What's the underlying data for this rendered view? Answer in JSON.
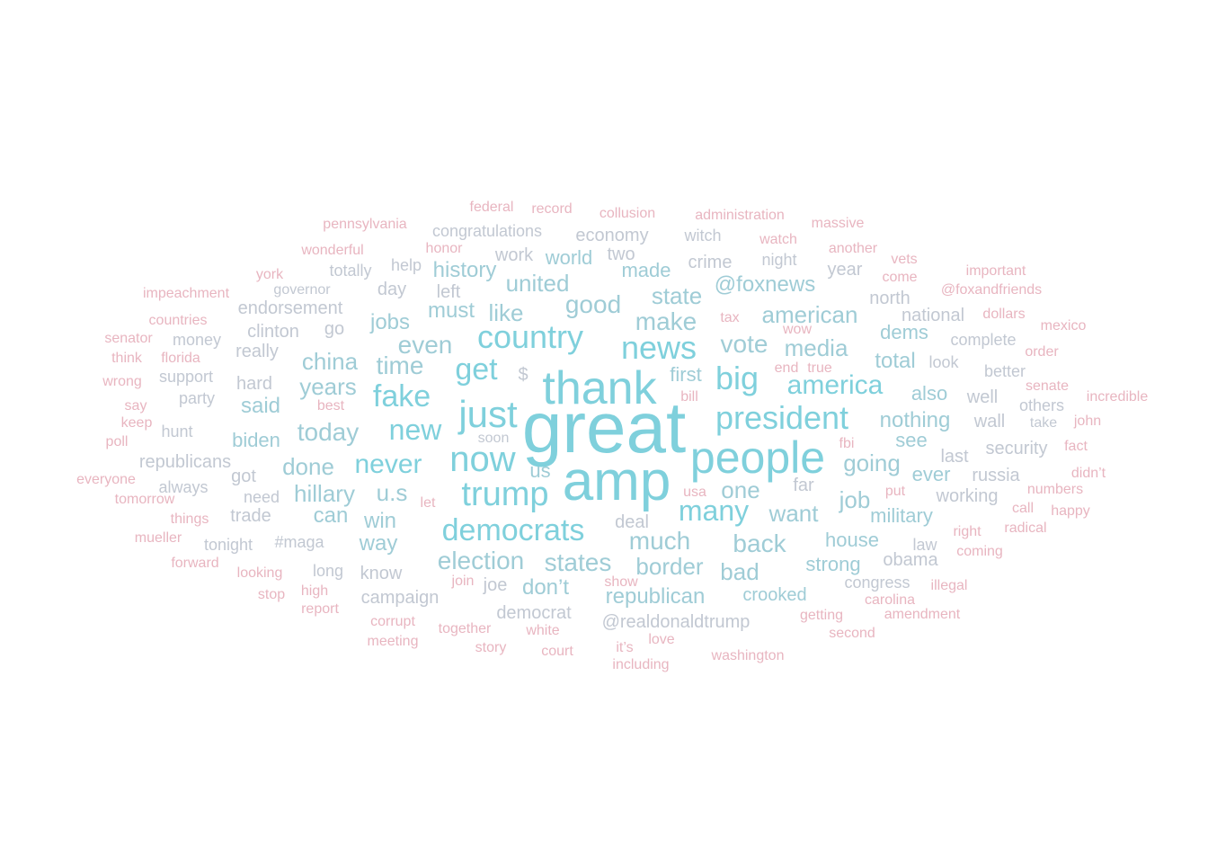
{
  "palette": {
    "tier1": "#7fd0dc",
    "tier2": "#9fccd6",
    "tier3": "#c2c8d2",
    "tier4": "#e8b5c0"
  },
  "words": [
    {
      "text": "great",
      "tier": 1,
      "weight": 100
    },
    {
      "text": "amp",
      "tier": 1,
      "weight": 90
    },
    {
      "text": "thank",
      "tier": 1,
      "weight": 78
    },
    {
      "text": "people",
      "tier": 1,
      "weight": 76
    },
    {
      "text": "just",
      "tier": 1,
      "weight": 60
    },
    {
      "text": "now",
      "tier": 1,
      "weight": 56
    },
    {
      "text": "trump",
      "tier": 1,
      "weight": 54
    },
    {
      "text": "news",
      "tier": 1,
      "weight": 52
    },
    {
      "text": "president",
      "tier": 1,
      "weight": 52
    },
    {
      "text": "country",
      "tier": 1,
      "weight": 50
    },
    {
      "text": "democrats",
      "tier": 1,
      "weight": 48
    },
    {
      "text": "fake",
      "tier": 1,
      "weight": 48
    },
    {
      "text": "big",
      "tier": 1,
      "weight": 48
    },
    {
      "text": "get",
      "tier": 1,
      "weight": 46
    },
    {
      "text": "many",
      "tier": 1,
      "weight": 46
    },
    {
      "text": "new",
      "tier": 1,
      "weight": 46
    },
    {
      "text": "never",
      "tier": 1,
      "weight": 44
    },
    {
      "text": "america",
      "tier": 1,
      "weight": 42
    },
    {
      "text": "much",
      "tier": 2,
      "weight": 40
    },
    {
      "text": "back",
      "tier": 2,
      "weight": 40
    },
    {
      "text": "make",
      "tier": 2,
      "weight": 40
    },
    {
      "text": "vote",
      "tier": 2,
      "weight": 40
    },
    {
      "text": "today",
      "tier": 2,
      "weight": 40
    },
    {
      "text": "election",
      "tier": 2,
      "weight": 38
    },
    {
      "text": "states",
      "tier": 2,
      "weight": 38
    },
    {
      "text": "even",
      "tier": 2,
      "weight": 38
    },
    {
      "text": "time",
      "tier": 2,
      "weight": 38
    },
    {
      "text": "good",
      "tier": 2,
      "weight": 38
    },
    {
      "text": "media",
      "tier": 2,
      "weight": 38
    },
    {
      "text": "border",
      "tier": 2,
      "weight": 38
    },
    {
      "text": "want",
      "tier": 2,
      "weight": 38
    },
    {
      "text": "one",
      "tier": 2,
      "weight": 38
    },
    {
      "text": "job",
      "tier": 2,
      "weight": 36
    },
    {
      "text": "going",
      "tier": 2,
      "weight": 36
    },
    {
      "text": "years",
      "tier": 2,
      "weight": 36
    },
    {
      "text": "american",
      "tier": 2,
      "weight": 36
    },
    {
      "text": "hillary",
      "tier": 2,
      "weight": 36
    },
    {
      "text": "u.s",
      "tier": 2,
      "weight": 36
    },
    {
      "text": "done",
      "tier": 2,
      "weight": 34
    },
    {
      "text": "bad",
      "tier": 2,
      "weight": 34
    },
    {
      "text": "china",
      "tier": 2,
      "weight": 34
    },
    {
      "text": "win",
      "tier": 2,
      "weight": 34
    },
    {
      "text": "united",
      "tier": 2,
      "weight": 34
    },
    {
      "text": "state",
      "tier": 2,
      "weight": 34
    },
    {
      "text": "republican",
      "tier": 2,
      "weight": 34
    },
    {
      "text": "like",
      "tier": 2,
      "weight": 34
    },
    {
      "text": "must",
      "tier": 2,
      "weight": 34
    },
    {
      "text": "nothing",
      "tier": 2,
      "weight": 32
    },
    {
      "text": "way",
      "tier": 2,
      "weight": 32
    },
    {
      "text": "can",
      "tier": 2,
      "weight": 32
    },
    {
      "text": "@foxnews",
      "tier": 2,
      "weight": 32
    },
    {
      "text": "history",
      "tier": 2,
      "weight": 32
    },
    {
      "text": "total",
      "tier": 2,
      "weight": 32
    },
    {
      "text": "military",
      "tier": 2,
      "weight": 32
    },
    {
      "text": "house",
      "tier": 2,
      "weight": 32
    },
    {
      "text": "said",
      "tier": 2,
      "weight": 32
    },
    {
      "text": "jobs",
      "tier": 2,
      "weight": 32
    },
    {
      "text": "don’t",
      "tier": 2,
      "weight": 32
    },
    {
      "text": "ever",
      "tier": 2,
      "weight": 30
    },
    {
      "text": "strong",
      "tier": 2,
      "weight": 30
    },
    {
      "text": "also",
      "tier": 2,
      "weight": 30
    },
    {
      "text": "crooked",
      "tier": 2,
      "weight": 30
    },
    {
      "text": "world",
      "tier": 2,
      "weight": 30
    },
    {
      "text": "made",
      "tier": 2,
      "weight": 30
    },
    {
      "text": "biden",
      "tier": 2,
      "weight": 30
    },
    {
      "text": "first",
      "tier": 2,
      "weight": 30
    },
    {
      "text": "us",
      "tier": 2,
      "weight": 30
    },
    {
      "text": "see",
      "tier": 2,
      "weight": 30
    },
    {
      "text": "dems",
      "tier": 2,
      "weight": 30
    },
    {
      "text": "@realdonaldtrump",
      "tier": 3,
      "weight": 28
    },
    {
      "text": "wall",
      "tier": 3,
      "weight": 28
    },
    {
      "text": "crime",
      "tier": 3,
      "weight": 28
    },
    {
      "text": "security",
      "tier": 3,
      "weight": 28
    },
    {
      "text": "working",
      "tier": 3,
      "weight": 28
    },
    {
      "text": "russia",
      "tier": 3,
      "weight": 28
    },
    {
      "text": "campaign",
      "tier": 3,
      "weight": 28
    },
    {
      "text": "republicans",
      "tier": 3,
      "weight": 28
    },
    {
      "text": "national",
      "tier": 3,
      "weight": 28
    },
    {
      "text": "last",
      "tier": 3,
      "weight": 28
    },
    {
      "text": "go",
      "tier": 3,
      "weight": 28
    },
    {
      "text": "clinton",
      "tier": 3,
      "weight": 28
    },
    {
      "text": "endorsement",
      "tier": 3,
      "weight": 28
    },
    {
      "text": "economy",
      "tier": 3,
      "weight": 28
    },
    {
      "text": "hard",
      "tier": 3,
      "weight": 28
    },
    {
      "text": "know",
      "tier": 3,
      "weight": 28
    },
    {
      "text": "well",
      "tier": 3,
      "weight": 28
    },
    {
      "text": "got",
      "tier": 3,
      "weight": 28
    },
    {
      "text": "obama",
      "tier": 3,
      "weight": 28
    },
    {
      "text": "deal",
      "tier": 3,
      "weight": 28
    },
    {
      "text": "far",
      "tier": 3,
      "weight": 28
    },
    {
      "text": "really",
      "tier": 3,
      "weight": 28
    },
    {
      "text": "democrat",
      "tier": 3,
      "weight": 26
    },
    {
      "text": "congratulations",
      "tier": 3,
      "weight": 26
    },
    {
      "text": "trade",
      "tier": 3,
      "weight": 26
    },
    {
      "text": "left",
      "tier": 3,
      "weight": 26
    },
    {
      "text": "day",
      "tier": 3,
      "weight": 26
    },
    {
      "text": "joe",
      "tier": 3,
      "weight": 26
    },
    {
      "text": "year",
      "tier": 3,
      "weight": 26
    },
    {
      "text": "north",
      "tier": 3,
      "weight": 26
    },
    {
      "text": "complete",
      "tier": 3,
      "weight": 26
    },
    {
      "text": "better",
      "tier": 3,
      "weight": 26
    },
    {
      "text": "two",
      "tier": 3,
      "weight": 26
    },
    {
      "text": "work",
      "tier": 3,
      "weight": 26
    },
    {
      "text": "witch",
      "tier": 3,
      "weight": 26
    },
    {
      "text": "night",
      "tier": 3,
      "weight": 26
    },
    {
      "text": "look",
      "tier": 3,
      "weight": 26
    },
    {
      "text": "law",
      "tier": 3,
      "weight": 26
    },
    {
      "text": "long",
      "tier": 3,
      "weight": 26
    },
    {
      "text": "need",
      "tier": 3,
      "weight": 26
    },
    {
      "text": "$",
      "tier": 3,
      "weight": 26
    },
    {
      "text": "support",
      "tier": 3,
      "weight": 26
    },
    {
      "text": "party",
      "tier": 3,
      "weight": 26
    },
    {
      "text": "money",
      "tier": 3,
      "weight": 26
    },
    {
      "text": "totally",
      "tier": 3,
      "weight": 26
    },
    {
      "text": "help",
      "tier": 3,
      "weight": 26
    },
    {
      "text": "always",
      "tier": 3,
      "weight": 26
    },
    {
      "text": "#maga",
      "tier": 3,
      "weight": 26
    },
    {
      "text": "tonight",
      "tier": 3,
      "weight": 26
    },
    {
      "text": "congress",
      "tier": 3,
      "weight": 26
    },
    {
      "text": "hunt",
      "tier": 3,
      "weight": 24
    },
    {
      "text": "soon",
      "tier": 3,
      "weight": 24
    },
    {
      "text": "governor",
      "tier": 3,
      "weight": 24
    },
    {
      "text": "take",
      "tier": 3,
      "weight": 24
    },
    {
      "text": "others",
      "tier": 3,
      "weight": 24
    },
    {
      "text": "@foxandfriends",
      "tier": 4,
      "weight": 24
    },
    {
      "text": "getting",
      "tier": 4,
      "weight": 24
    },
    {
      "text": "together",
      "tier": 4,
      "weight": 24
    },
    {
      "text": "watch",
      "tier": 4,
      "weight": 24
    },
    {
      "text": "another",
      "tier": 4,
      "weight": 24
    },
    {
      "text": "right",
      "tier": 4,
      "weight": 24
    },
    {
      "text": "looking",
      "tier": 4,
      "weight": 24
    },
    {
      "text": "things",
      "tier": 4,
      "weight": 24
    },
    {
      "text": "wonderful",
      "tier": 4,
      "weight": 24
    },
    {
      "text": "record",
      "tier": 4,
      "weight": 24
    },
    {
      "text": "federal",
      "tier": 4,
      "weight": 24
    },
    {
      "text": "collusion",
      "tier": 4,
      "weight": 24
    },
    {
      "text": "administration",
      "tier": 4,
      "weight": 24
    },
    {
      "text": "pennsylvania",
      "tier": 4,
      "weight": 24
    },
    {
      "text": "massive",
      "tier": 4,
      "weight": 24
    },
    {
      "text": "honor",
      "tier": 4,
      "weight": 24
    },
    {
      "text": "york",
      "tier": 4,
      "weight": 24
    },
    {
      "text": "vets",
      "tier": 4,
      "weight": 24
    },
    {
      "text": "come",
      "tier": 4,
      "weight": 24
    },
    {
      "text": "impeachment",
      "tier": 4,
      "weight": 24
    },
    {
      "text": "important",
      "tier": 4,
      "weight": 22
    },
    {
      "text": "countries",
      "tier": 4,
      "weight": 22
    },
    {
      "text": "tax",
      "tier": 4,
      "weight": 22
    },
    {
      "text": "dollars",
      "tier": 4,
      "weight": 22
    },
    {
      "text": "senator",
      "tier": 4,
      "weight": 22
    },
    {
      "text": "mexico",
      "tier": 4,
      "weight": 22
    },
    {
      "text": "wow",
      "tier": 4,
      "weight": 22
    },
    {
      "text": "think",
      "tier": 4,
      "weight": 22
    },
    {
      "text": "florida",
      "tier": 4,
      "weight": 22
    },
    {
      "text": "order",
      "tier": 4,
      "weight": 22
    },
    {
      "text": "end",
      "tier": 4,
      "weight": 22
    },
    {
      "text": "true",
      "tier": 4,
      "weight": 22
    },
    {
      "text": "wrong",
      "tier": 4,
      "weight": 22
    },
    {
      "text": "senate",
      "tier": 4,
      "weight": 22
    },
    {
      "text": "best",
      "tier": 4,
      "weight": 22
    },
    {
      "text": "bill",
      "tier": 4,
      "weight": 22
    },
    {
      "text": "incredible",
      "tier": 4,
      "weight": 22
    },
    {
      "text": "say",
      "tier": 4,
      "weight": 22
    },
    {
      "text": "keep",
      "tier": 4,
      "weight": 22
    },
    {
      "text": "john",
      "tier": 4,
      "weight": 22
    },
    {
      "text": "fbi",
      "tier": 4,
      "weight": 22
    },
    {
      "text": "poll",
      "tier": 4,
      "weight": 22
    },
    {
      "text": "fact",
      "tier": 4,
      "weight": 22
    },
    {
      "text": "didn’t",
      "tier": 4,
      "weight": 22
    },
    {
      "text": "everyone",
      "tier": 4,
      "weight": 22
    },
    {
      "text": "numbers",
      "tier": 4,
      "weight": 22
    },
    {
      "text": "tomorrow",
      "tier": 4,
      "weight": 22
    },
    {
      "text": "usa",
      "tier": 4,
      "weight": 22
    },
    {
      "text": "put",
      "tier": 4,
      "weight": 22
    },
    {
      "text": "let",
      "tier": 4,
      "weight": 22
    },
    {
      "text": "happy",
      "tier": 4,
      "weight": 22
    },
    {
      "text": "radical",
      "tier": 4,
      "weight": 22
    },
    {
      "text": "mueller",
      "tier": 4,
      "weight": 22
    },
    {
      "text": "coming",
      "tier": 4,
      "weight": 22
    },
    {
      "text": "forward",
      "tier": 4,
      "weight": 22
    },
    {
      "text": "join",
      "tier": 4,
      "weight": 22
    },
    {
      "text": "show",
      "tier": 4,
      "weight": 22
    },
    {
      "text": "high",
      "tier": 4,
      "weight": 22
    },
    {
      "text": "stop",
      "tier": 4,
      "weight": 22
    },
    {
      "text": "illegal",
      "tier": 4,
      "weight": 22
    },
    {
      "text": "carolina",
      "tier": 4,
      "weight": 22
    },
    {
      "text": "report",
      "tier": 4,
      "weight": 22
    },
    {
      "text": "amendment",
      "tier": 4,
      "weight": 22
    },
    {
      "text": "corrupt",
      "tier": 4,
      "weight": 22
    },
    {
      "text": "white",
      "tier": 4,
      "weight": 22
    },
    {
      "text": "second",
      "tier": 4,
      "weight": 22
    },
    {
      "text": "meeting",
      "tier": 4,
      "weight": 22
    },
    {
      "text": "love",
      "tier": 4,
      "weight": 22
    },
    {
      "text": "story",
      "tier": 4,
      "weight": 22
    },
    {
      "text": "court",
      "tier": 4,
      "weight": 22
    },
    {
      "text": "it’s",
      "tier": 4,
      "weight": 22
    },
    {
      "text": "washington",
      "tier": 4,
      "weight": 22
    },
    {
      "text": "including",
      "tier": 4,
      "weight": 22
    },
    {
      "text": "call",
      "tier": 4,
      "weight": 22
    }
  ]
}
